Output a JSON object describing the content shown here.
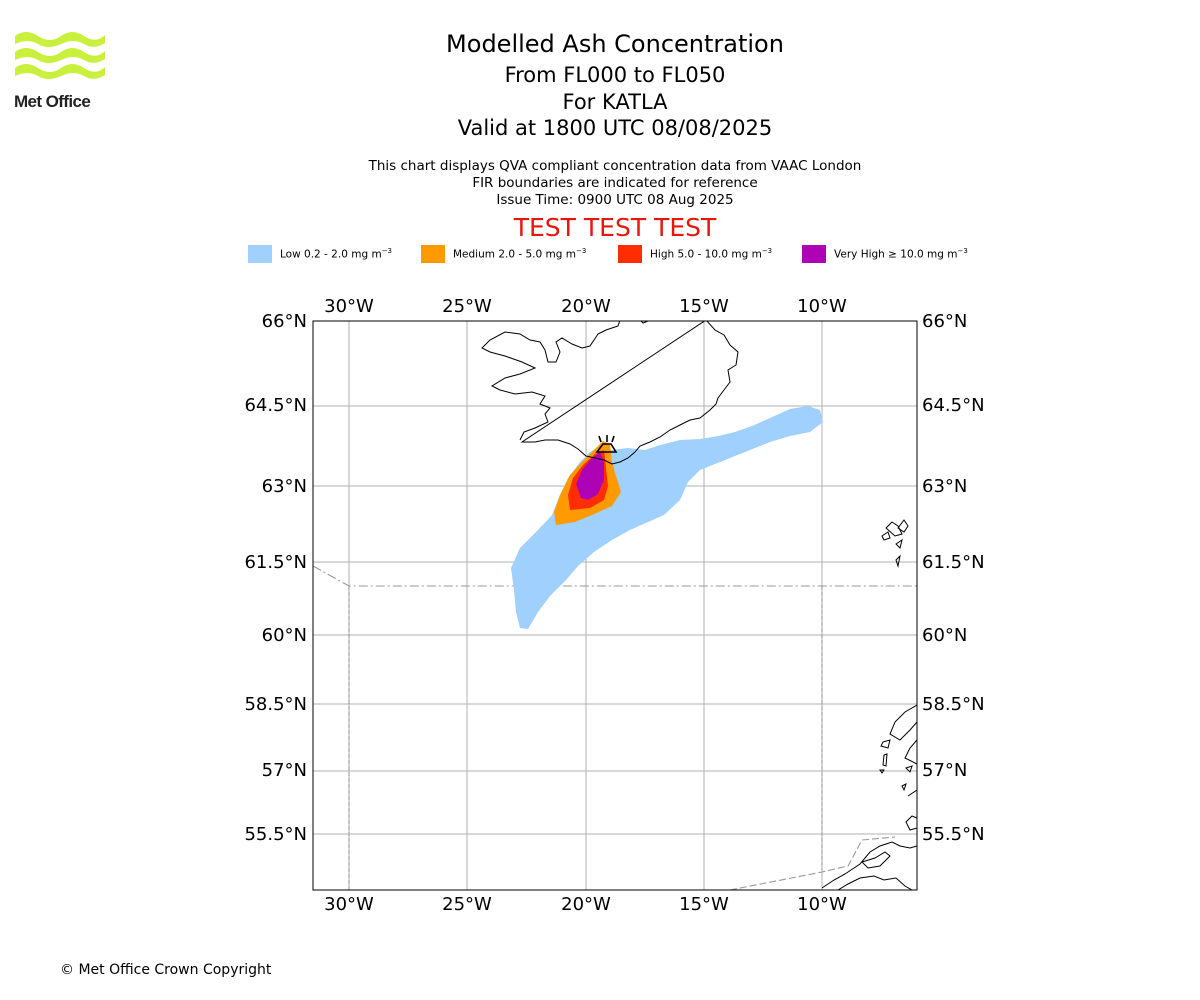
{
  "header": {
    "logo_text": "Met Office",
    "title": "Modelled Ash Concentration",
    "levels": "From FL000 to FL050",
    "volcano": "For KATLA",
    "valid": "Valid at 1800 UTC 08/08/2025",
    "info_lines": [
      "This chart displays QVA compliant concentration data from VAAC London",
      "FIR boundaries are indicated for reference",
      "Issue Time: 0900 UTC 08 Aug 2025"
    ],
    "test_banner": "TEST TEST TEST"
  },
  "legend": {
    "items": [
      {
        "label": "Low 0.2 - 2.0 mg m",
        "unit_exp": "−3",
        "color": "#a0d0fd"
      },
      {
        "label": "Medium 2.0 - 5.0 mg m",
        "unit_exp": "−3",
        "color": "#ff9a03"
      },
      {
        "label": "High 5.0 - 10.0 mg m",
        "unit_exp": "−3",
        "color": "#ff2d00"
      },
      {
        "label": "Very High  ≥  10.0 mg m",
        "unit_exp": "−3",
        "color": "#ad03b4"
      }
    ]
  },
  "map": {
    "lon_ticks": [
      "30°W",
      "25°W",
      "20°W",
      "15°W",
      "10°W"
    ],
    "lat_ticks": [
      "66°N",
      "64.5°N",
      "63°N",
      "61.5°N",
      "60°N",
      "58.5°N",
      "57°N",
      "55.5°N"
    ],
    "colors": {
      "grid": "#b0b0b0",
      "coast": "#000000",
      "fir": "#999999"
    }
  },
  "footer": {
    "copyright": "© Met Office Crown Copyright"
  }
}
